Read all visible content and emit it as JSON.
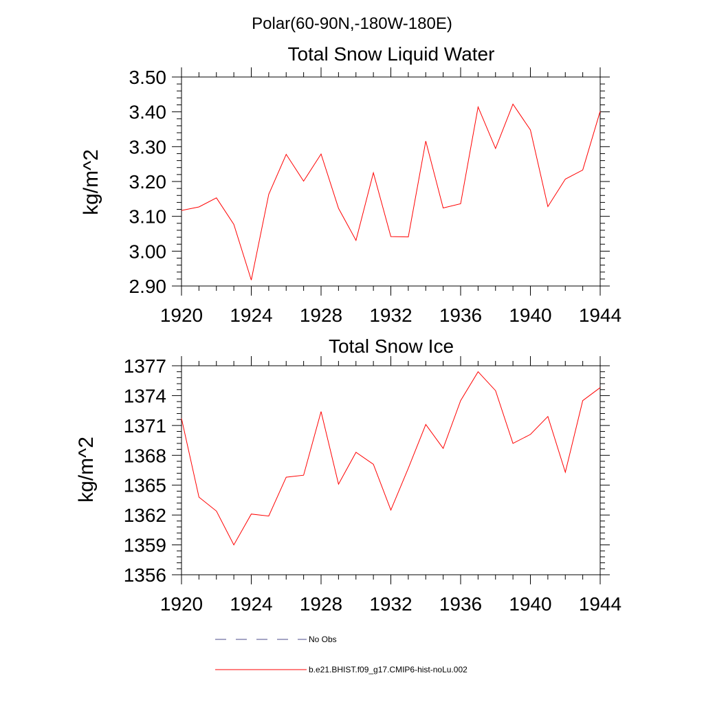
{
  "page_title": "Polar(60-90N,-180W-180E)",
  "chart_data": [
    {
      "type": "line",
      "title": "Total Snow Liquid Water",
      "ylabel": "kg/m^2",
      "xlabel": "",
      "xlim": [
        1920,
        1944
      ],
      "ylim": [
        2.9,
        3.5
      ],
      "x_ticks": [
        "1920",
        "1924",
        "1928",
        "1932",
        "1936",
        "1940",
        "1944"
      ],
      "y_ticks": [
        "2.90",
        "3.00",
        "3.10",
        "3.20",
        "3.30",
        "3.40",
        "3.50"
      ],
      "grid": false,
      "series": [
        {
          "name": "b.e21.BHIST.f09_g17.CMIP6-hist-noLu.002",
          "color": "#ff0000",
          "x": [
            1920,
            1921,
            1922,
            1923,
            1924,
            1925,
            1926,
            1927,
            1928,
            1929,
            1930,
            1931,
            1932,
            1933,
            1934,
            1935,
            1936,
            1937,
            1938,
            1939,
            1940,
            1941,
            1942,
            1943,
            1944
          ],
          "values": [
            3.117,
            3.127,
            3.153,
            3.077,
            2.917,
            3.163,
            3.278,
            3.201,
            3.279,
            3.123,
            3.031,
            3.225,
            3.042,
            3.041,
            3.316,
            3.124,
            3.136,
            3.414,
            3.295,
            3.422,
            3.348,
            3.128,
            3.207,
            3.233,
            3.402
          ]
        }
      ]
    },
    {
      "type": "line",
      "title": "Total Snow Ice",
      "ylabel": "kg/m^2",
      "xlabel": "",
      "xlim": [
        1920,
        1944
      ],
      "ylim": [
        1356,
        1377
      ],
      "x_ticks": [
        "1920",
        "1924",
        "1928",
        "1932",
        "1936",
        "1940",
        "1944"
      ],
      "y_ticks": [
        "1356",
        "1359",
        "1362",
        "1365",
        "1368",
        "1371",
        "1374",
        "1377"
      ],
      "grid": false,
      "series": [
        {
          "name": "b.e21.BHIST.f09_g17.CMIP6-hist-noLu.002",
          "color": "#ff0000",
          "x": [
            1920,
            1921,
            1922,
            1923,
            1924,
            1925,
            1926,
            1927,
            1928,
            1929,
            1930,
            1931,
            1932,
            1933,
            1934,
            1935,
            1936,
            1937,
            1938,
            1939,
            1940,
            1941,
            1942,
            1943,
            1944
          ],
          "values": [
            1371.7,
            1363.8,
            1362.4,
            1359.0,
            1362.1,
            1361.9,
            1365.8,
            1366.0,
            1372.4,
            1365.1,
            1368.3,
            1367.1,
            1362.5,
            1366.7,
            1371.1,
            1368.7,
            1373.5,
            1376.4,
            1374.5,
            1369.2,
            1370.1,
            1371.9,
            1366.3,
            1373.5,
            1374.8
          ]
        }
      ]
    }
  ],
  "legend": {
    "placement": "bottom",
    "items": [
      {
        "label": "No Obs",
        "style": "dashed",
        "color": "#4a4a8a"
      },
      {
        "label": "b.e21.BHIST.f09_g17.CMIP6-hist-noLu.002",
        "style": "solid",
        "color": "#ff0000"
      }
    ]
  }
}
